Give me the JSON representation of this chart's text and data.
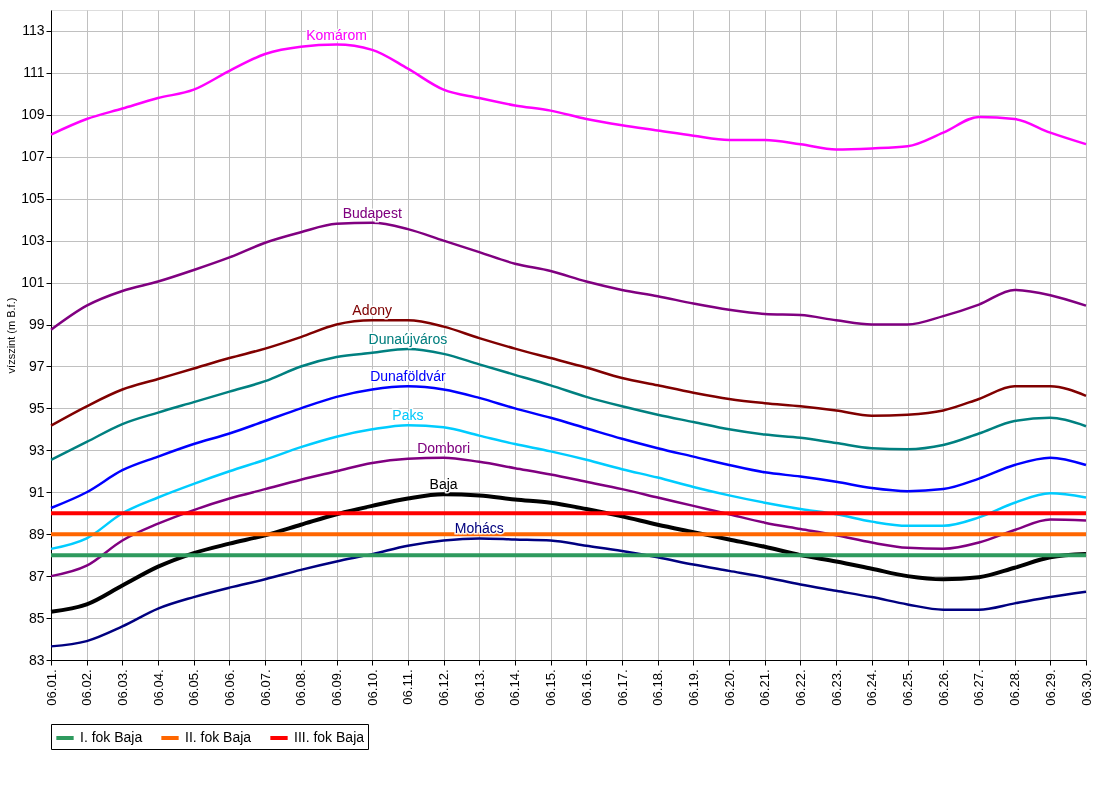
{
  "chart_data": {
    "type": "line",
    "ylabel": "vízszint (m B.f.)",
    "categories": [
      "06.01.",
      "06.02.",
      "06.03.",
      "06.04.",
      "06.05.",
      "06.06.",
      "06.07.",
      "06.08.",
      "06.09.",
      "06.10.",
      "06.11.",
      "06.12.",
      "06.13.",
      "06.14.",
      "06.15.",
      "06.16.",
      "06.17.",
      "06.18.",
      "06.19.",
      "06.20.",
      "06.21.",
      "06.22.",
      "06.23.",
      "06.24.",
      "06.25.",
      "06.26.",
      "06.27.",
      "06.28.",
      "06.29.",
      "06.30."
    ],
    "series": [
      {
        "name": "Komárom",
        "color": "#ff00ff",
        "values": [
          108.06,
          108.8,
          109.3,
          109.8,
          110.2,
          111.1,
          111.9,
          112.25,
          112.35,
          112.1,
          111.2,
          110.2,
          109.8,
          109.45,
          109.2,
          108.8,
          108.5,
          108.25,
          108.0,
          107.8,
          107.8,
          107.6,
          107.35,
          107.4,
          107.5,
          108.15,
          108.9,
          108.8,
          108.15,
          107.6
        ]
      },
      {
        "name": "Budapest",
        "color": "#800080",
        "values": [
          98.75,
          99.9,
          100.6,
          101.05,
          101.6,
          102.2,
          102.9,
          103.4,
          103.8,
          103.85,
          103.55,
          103.0,
          102.45,
          101.9,
          101.55,
          101.05,
          100.65,
          100.35,
          100.0,
          99.7,
          99.5,
          99.45,
          99.2,
          99.0,
          99.0,
          99.4,
          99.95,
          100.65,
          100.4,
          99.9
        ]
      },
      {
        "name": "Adony",
        "color": "#800000",
        "values": [
          94.18,
          95.1,
          95.9,
          96.4,
          96.9,
          97.4,
          97.85,
          98.4,
          99.0,
          99.2,
          99.2,
          98.9,
          98.35,
          97.85,
          97.4,
          96.95,
          96.45,
          96.1,
          95.75,
          95.45,
          95.25,
          95.1,
          94.9,
          94.65,
          94.7,
          94.9,
          95.45,
          96.05,
          96.05,
          95.6
        ]
      },
      {
        "name": "Dunaújváros",
        "color": "#008080",
        "values": [
          92.55,
          93.4,
          94.25,
          94.8,
          95.3,
          95.8,
          96.3,
          97.0,
          97.45,
          97.65,
          97.83,
          97.6,
          97.1,
          96.6,
          96.1,
          95.55,
          95.1,
          94.7,
          94.35,
          94.0,
          93.75,
          93.6,
          93.35,
          93.1,
          93.05,
          93.25,
          93.8,
          94.4,
          94.55,
          94.15
        ]
      },
      {
        "name": "Dunaföldvár",
        "color": "#0000ff",
        "values": [
          90.25,
          91.0,
          92.05,
          92.7,
          93.3,
          93.8,
          94.4,
          95.0,
          95.55,
          95.9,
          96.05,
          95.9,
          95.5,
          95.0,
          94.55,
          94.05,
          93.55,
          93.1,
          92.7,
          92.3,
          91.95,
          91.75,
          91.5,
          91.2,
          91.05,
          91.15,
          91.65,
          92.3,
          92.65,
          92.3
        ]
      },
      {
        "name": "Paks",
        "color": "#00ccff",
        "values": [
          88.3,
          88.8,
          90.0,
          90.75,
          91.4,
          92.0,
          92.55,
          93.15,
          93.65,
          94.0,
          94.2,
          94.1,
          93.7,
          93.3,
          92.95,
          92.55,
          92.1,
          91.7,
          91.25,
          90.85,
          90.5,
          90.2,
          89.95,
          89.6,
          89.4,
          89.4,
          89.8,
          90.5,
          90.95,
          90.75
        ]
      },
      {
        "name": "Dombori",
        "color": "#800080",
        "values": [
          87.0,
          87.5,
          88.7,
          89.5,
          90.15,
          90.7,
          91.15,
          91.6,
          92.0,
          92.4,
          92.6,
          92.65,
          92.45,
          92.15,
          91.85,
          91.5,
          91.15,
          90.75,
          90.35,
          89.95,
          89.55,
          89.25,
          88.95,
          88.6,
          88.35,
          88.3,
          88.6,
          89.2,
          89.7,
          89.65
        ]
      },
      {
        "name": "Baja",
        "color": "#000000",
        "values": [
          85.3,
          85.65,
          86.55,
          87.45,
          88.1,
          88.55,
          88.95,
          89.45,
          89.95,
          90.35,
          90.7,
          90.9,
          90.85,
          90.65,
          90.5,
          90.2,
          89.85,
          89.45,
          89.1,
          88.75,
          88.4,
          88.0,
          87.7,
          87.35,
          87.0,
          86.85,
          86.95,
          87.4,
          87.9,
          88.05
        ]
      },
      {
        "name": "Mohács",
        "color": "#000080",
        "values": [
          83.65,
          83.9,
          84.6,
          85.45,
          86.0,
          86.45,
          86.85,
          87.3,
          87.7,
          88.05,
          88.45,
          88.7,
          88.8,
          88.75,
          88.7,
          88.45,
          88.2,
          87.9,
          87.55,
          87.25,
          86.95,
          86.6,
          86.3,
          86.0,
          85.65,
          85.4,
          85.4,
          85.7,
          86.0,
          86.25
        ]
      }
    ],
    "ref_lines": [
      {
        "axis": "y",
        "value": 88,
        "label": "I. fok Baja",
        "color": "#2e9a5e"
      },
      {
        "axis": "y",
        "value": 89,
        "label": "II. fok Baja",
        "color": "#ff6600"
      },
      {
        "axis": "y",
        "value": 90,
        "label": "III. fok Baja",
        "color": "#ff0000"
      }
    ],
    "ylim": [
      83,
      114
    ],
    "yticks": [
      83,
      85,
      87,
      89,
      91,
      93,
      95,
      97,
      99,
      101,
      103,
      105,
      107,
      109,
      111,
      113
    ],
    "grid": true,
    "legend": "bottom",
    "line_style": "solid",
    "marker": "none"
  }
}
